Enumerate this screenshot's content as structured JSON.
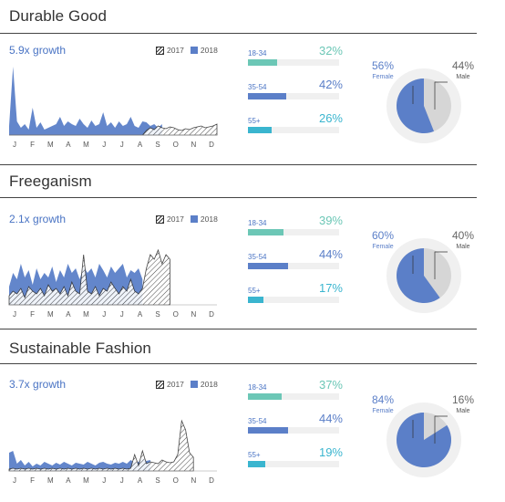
{
  "colors": {
    "y2018": "#5b7fc8",
    "y2017": "#333333",
    "age1": "#6cc7b6",
    "age2": "#5b7fc8",
    "age3": "#3ab5cf",
    "male": "#d6d6d6",
    "female": "#5b7fc8",
    "accent": "#4a74c4"
  },
  "legend": {
    "y2017": "2017",
    "y2018": "2018"
  },
  "months": [
    "J",
    "F",
    "M",
    "A",
    "M",
    "J",
    "J",
    "A",
    "S",
    "O",
    "N",
    "D"
  ],
  "chart_data": [
    {
      "type": "area",
      "title": "Durable Good",
      "growth": "5.9x growth",
      "series": [
        {
          "name": "2018",
          "values": [
            10,
            75,
            15,
            8,
            12,
            6,
            30,
            8,
            14,
            6,
            8,
            10,
            12,
            20,
            10,
            15,
            12,
            10,
            18,
            12,
            8,
            16,
            10,
            12,
            25,
            10,
            14,
            8,
            15,
            10,
            12,
            20,
            10,
            8,
            15,
            14,
            10,
            12,
            8,
            12
          ]
        },
        {
          "name": "2017",
          "values": [
            0,
            0,
            0,
            0,
            0,
            0,
            0,
            0,
            0,
            0,
            0,
            0,
            0,
            0,
            0,
            0,
            0,
            0,
            0,
            0,
            0,
            0,
            0,
            0,
            0,
            0,
            0,
            0,
            0,
            0,
            0,
            0,
            0,
            0,
            0,
            5,
            8,
            6,
            10,
            8,
            7,
            9,
            8,
            6,
            5,
            7,
            6,
            8,
            9,
            10,
            8,
            9,
            10,
            12
          ]
        }
      ],
      "age": [
        {
          "label": "18-34",
          "value": 32,
          "text": "32%"
        },
        {
          "label": "35-54",
          "value": 42,
          "text": "42%"
        },
        {
          "label": "55+",
          "value": 26,
          "text": "26%"
        }
      ],
      "gender": {
        "female": 56,
        "male": 44,
        "female_text": "56%",
        "male_text": "44%",
        "female_label": "Female",
        "male_label": "Male"
      }
    },
    {
      "type": "area",
      "title": "Freeganism",
      "growth": "2.1x growth",
      "series": [
        {
          "name": "2018",
          "values": [
            20,
            35,
            28,
            45,
            30,
            38,
            22,
            40,
            28,
            35,
            30,
            42,
            25,
            38,
            30,
            45,
            35,
            40,
            28,
            42,
            35,
            40,
            30,
            45,
            38,
            30,
            42,
            35,
            40,
            45,
            30,
            38,
            35,
            40,
            28
          ]
        },
        {
          "name": "2017",
          "values": [
            10,
            15,
            12,
            18,
            8,
            20,
            15,
            12,
            18,
            10,
            22,
            15,
            18,
            12,
            20,
            10,
            25,
            15,
            12,
            55,
            15,
            12,
            20,
            10,
            18,
            15,
            25,
            18,
            12,
            20,
            15,
            28,
            15,
            12,
            18,
            40,
            55,
            50,
            60,
            45,
            55,
            50
          ]
        }
      ],
      "age": [
        {
          "label": "18-34",
          "value": 39,
          "text": "39%"
        },
        {
          "label": "35-54",
          "value": 44,
          "text": "44%"
        },
        {
          "label": "55+",
          "value": 17,
          "text": "17%"
        }
      ],
      "gender": {
        "female": 60,
        "male": 40,
        "female_text": "60%",
        "male_text": "40%",
        "female_label": "Female",
        "male_label": "Male"
      }
    },
    {
      "type": "area",
      "title": "Sustainable Fashion",
      "growth": "3.7x growth",
      "series": [
        {
          "name": "2018",
          "values": [
            20,
            22,
            8,
            12,
            6,
            10,
            5,
            8,
            6,
            10,
            8,
            6,
            9,
            7,
            10,
            8,
            6,
            9,
            8,
            7,
            10,
            8,
            6,
            9,
            10,
            8,
            7,
            9,
            8,
            10,
            8,
            12,
            9,
            10,
            14,
            11,
            12
          ]
        },
        {
          "name": "2017",
          "values": [
            2,
            3,
            2,
            3,
            2,
            3,
            2,
            3,
            2,
            3,
            2,
            3,
            2,
            3,
            2,
            3,
            2,
            3,
            2,
            3,
            2,
            3,
            2,
            3,
            2,
            3,
            2,
            3,
            2,
            3,
            2,
            3,
            18,
            6,
            22,
            8,
            10,
            9,
            8,
            12,
            10,
            9,
            10,
            18,
            55,
            45,
            20,
            15
          ]
        }
      ],
      "age": [
        {
          "label": "18-34",
          "value": 37,
          "text": "37%"
        },
        {
          "label": "35-54",
          "value": 44,
          "text": "44%"
        },
        {
          "label": "55+",
          "value": 19,
          "text": "19%"
        }
      ],
      "gender": {
        "female": 84,
        "male": 16,
        "female_text": "84%",
        "male_text": "16%",
        "female_label": "Female",
        "male_label": "Male"
      }
    }
  ]
}
